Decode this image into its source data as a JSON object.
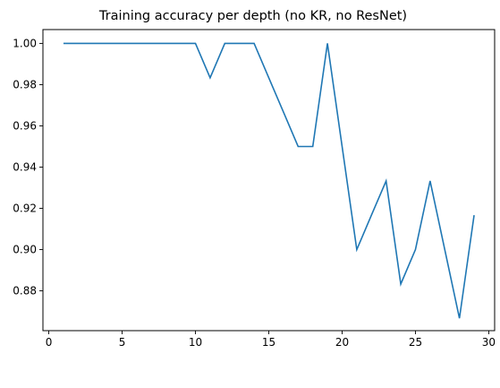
{
  "chart_data": {
    "type": "line",
    "title": "Training accuracy per depth (no KR, no ResNet)",
    "xlabel": "",
    "ylabel": "",
    "xlim": [
      -0.4,
      30.4
    ],
    "ylim": [
      0.8607,
      1.0067
    ],
    "xticks": [
      0,
      5,
      10,
      15,
      20,
      25,
      30
    ],
    "yticks": [
      0.88,
      0.9,
      0.92,
      0.94,
      0.96,
      0.98,
      1.0
    ],
    "ytick_labels": [
      "0.88",
      "0.90",
      "0.92",
      "0.94",
      "0.96",
      "0.98",
      "1.00"
    ],
    "grid": false,
    "series": [
      {
        "color": "#1f77b4",
        "x": [
          1,
          2,
          3,
          4,
          5,
          6,
          7,
          8,
          9,
          10,
          11,
          12,
          13,
          14,
          15,
          16,
          17,
          18,
          19,
          20,
          21,
          22,
          23,
          24,
          25,
          26,
          27,
          28,
          29
        ],
        "values": [
          1.0,
          1.0,
          1.0,
          1.0,
          1.0,
          1.0,
          1.0,
          1.0,
          1.0,
          1.0,
          0.9833,
          1.0,
          1.0,
          1.0,
          0.9833,
          0.9667,
          0.95,
          0.95,
          1.0,
          0.95,
          0.9,
          0.9167,
          0.9333,
          0.8833,
          0.9,
          0.9333,
          0.9,
          0.8667,
          0.9167
        ]
      }
    ]
  }
}
